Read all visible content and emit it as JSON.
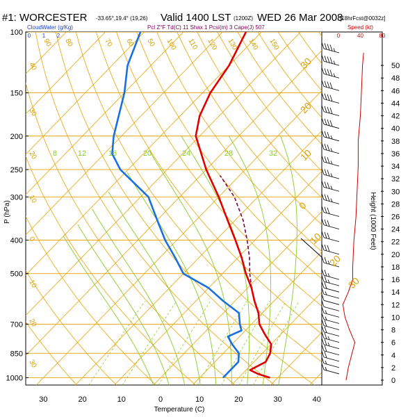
{
  "header": {
    "title_main": "#1: WORCESTER",
    "coords": "-33.65°,19.4° (19,26)",
    "valid": "Valid 1400 LST",
    "valid_utc": "(1200Z)",
    "date": "WED 26 Mar 2008",
    "forecast": "[18hrFcst@0032z]",
    "legend_cloudwater": "CloudWater (g/Kg)",
    "legend_params": "Pcl  Z°F Td(C)  11 Shax  1 Pcsi(m)  3 Cape(J)  507",
    "speed_label": "Speed (kt)"
  },
  "colors": {
    "temperature": "#e00000",
    "dewpoint": "#1a6fe0",
    "parcel": "#7a0050",
    "isobar": "#e8a400",
    "isotherm": "#e8a400",
    "mixing_ratio": "#88cc22",
    "speed_line": "#cc0000",
    "barb": "#000000"
  },
  "chart_data": {
    "type": "skew-t",
    "xlabel": "Temperature (C)",
    "ylabel": "P (hPa)",
    "right_ylabel": "Height (1000 Feet)",
    "pressure_ticks": [
      100,
      150,
      200,
      250,
      300,
      400,
      500,
      700,
      850,
      1000
    ],
    "temperature_ticks": [
      30,
      20,
      10,
      0,
      10,
      20,
      30,
      40
    ],
    "height_ticks": [
      0,
      2,
      4,
      6,
      8,
      10,
      12,
      14,
      16,
      18,
      20,
      22,
      24,
      26,
      28,
      30,
      32,
      34,
      36,
      38,
      40,
      42,
      44,
      46,
      48,
      50
    ],
    "speed_ticks": [
      0,
      40,
      80
    ],
    "cloudwater_ticks": [
      0,
      1,
      2
    ],
    "isotherm_labels": [
      -90,
      -80,
      -70,
      -60,
      -50,
      -40,
      -30,
      -20,
      -10,
      0,
      10,
      20,
      30
    ],
    "top_isotherm_labels": [
      90,
      80,
      70,
      60,
      50,
      100,
      110,
      120,
      130,
      140,
      150,
      160
    ],
    "left_edge_labels": [
      40,
      50,
      60,
      70,
      80,
      90
    ],
    "mixing_ratio_labels": [
      8,
      12,
      16,
      20,
      24,
      28,
      32
    ],
    "right_isotherm_labels": [
      30,
      20,
      10,
      0,
      10,
      20,
      30
    ],
    "temperature_profile": [
      {
        "p": 1000,
        "t": 28
      },
      {
        "p": 975,
        "t": 24
      },
      {
        "p": 950,
        "t": 21
      },
      {
        "p": 900,
        "t": 23
      },
      {
        "p": 850,
        "t": 22
      },
      {
        "p": 800,
        "t": 20
      },
      {
        "p": 750,
        "t": 16
      },
      {
        "p": 700,
        "t": 12
      },
      {
        "p": 650,
        "t": 9
      },
      {
        "p": 600,
        "t": 5
      },
      {
        "p": 550,
        "t": 1
      },
      {
        "p": 500,
        "t": -4
      },
      {
        "p": 450,
        "t": -9
      },
      {
        "p": 400,
        "t": -15
      },
      {
        "p": 350,
        "t": -22
      },
      {
        "p": 300,
        "t": -30
      },
      {
        "p": 250,
        "t": -40
      },
      {
        "p": 200,
        "t": -51
      },
      {
        "p": 175,
        "t": -55
      },
      {
        "p": 150,
        "t": -58
      },
      {
        "p": 125,
        "t": -60
      },
      {
        "p": 100,
        "t": -64
      }
    ],
    "dewpoint_profile": [
      {
        "p": 1000,
        "t": 16
      },
      {
        "p": 950,
        "t": 16
      },
      {
        "p": 900,
        "t": 16
      },
      {
        "p": 850,
        "t": 14
      },
      {
        "p": 800,
        "t": 10
      },
      {
        "p": 760,
        "t": 7
      },
      {
        "p": 730,
        "t": 9
      },
      {
        "p": 700,
        "t": 7
      },
      {
        "p": 650,
        "t": 4
      },
      {
        "p": 600,
        "t": -3
      },
      {
        "p": 550,
        "t": -10
      },
      {
        "p": 500,
        "t": -20
      },
      {
        "p": 450,
        "t": -26
      },
      {
        "p": 400,
        "t": -33
      },
      {
        "p": 350,
        "t": -40
      },
      {
        "p": 300,
        "t": -48
      },
      {
        "p": 250,
        "t": -62
      },
      {
        "p": 225,
        "t": -68
      },
      {
        "p": 200,
        "t": -72
      },
      {
        "p": 150,
        "t": -80
      },
      {
        "p": 125,
        "t": -86
      },
      {
        "p": 100,
        "t": -91
      }
    ],
    "parcel_profile": [
      {
        "p": 550,
        "t": 1
      },
      {
        "p": 500,
        "t": -3
      },
      {
        "p": 450,
        "t": -7
      },
      {
        "p": 400,
        "t": -12
      },
      {
        "p": 350,
        "t": -18
      },
      {
        "p": 300,
        "t": -26
      },
      {
        "p": 260,
        "t": -35
      }
    ],
    "wind_speed_profile": [
      {
        "h": 0,
        "s": 14
      },
      {
        "h": 2,
        "s": 18
      },
      {
        "h": 4,
        "s": 24
      },
      {
        "h": 6,
        "s": 30
      },
      {
        "h": 8,
        "s": 20
      },
      {
        "h": 10,
        "s": 12
      },
      {
        "h": 12,
        "s": 8
      },
      {
        "h": 14,
        "s": 18
      },
      {
        "h": 16,
        "s": 26
      },
      {
        "h": 18,
        "s": 26
      },
      {
        "h": 22,
        "s": 28
      },
      {
        "h": 26,
        "s": 32
      },
      {
        "h": 30,
        "s": 34
      },
      {
        "h": 34,
        "s": 36
      },
      {
        "h": 38,
        "s": 36
      },
      {
        "h": 42,
        "s": 40
      },
      {
        "h": 46,
        "s": 42
      },
      {
        "h": 50,
        "s": 44
      },
      {
        "h": 52,
        "s": 46
      }
    ],
    "wind_barbs": [
      {
        "h": 1,
        "s": 15
      },
      {
        "h": 2,
        "s": 15
      },
      {
        "h": 3,
        "s": 20
      },
      {
        "h": 4,
        "s": 20
      },
      {
        "h": 5,
        "s": 25
      },
      {
        "h": 6,
        "s": 25
      },
      {
        "h": 7,
        "s": 20
      },
      {
        "h": 8,
        "s": 20
      },
      {
        "h": 9,
        "s": 15
      },
      {
        "h": 10,
        "s": 15
      },
      {
        "h": 11,
        "s": 10
      },
      {
        "h": 12,
        "s": 10
      },
      {
        "h": 13,
        "s": 15
      },
      {
        "h": 14,
        "s": 20
      },
      {
        "h": 15,
        "s": 25
      },
      {
        "h": 16,
        "s": 25
      },
      {
        "h": 18,
        "s": 25
      },
      {
        "h": 20,
        "s": 30
      },
      {
        "h": 22,
        "s": 30
      },
      {
        "h": 24,
        "s": 30
      },
      {
        "h": 26,
        "s": 30
      },
      {
        "h": 28,
        "s": 35
      },
      {
        "h": 30,
        "s": 35
      },
      {
        "h": 32,
        "s": 35
      },
      {
        "h": 34,
        "s": 35
      },
      {
        "h": 36,
        "s": 35
      },
      {
        "h": 38,
        "s": 35
      },
      {
        "h": 40,
        "s": 40
      },
      {
        "h": 42,
        "s": 40
      },
      {
        "h": 44,
        "s": 40
      },
      {
        "h": 46,
        "s": 40
      },
      {
        "h": 48,
        "s": 45
      },
      {
        "h": 50,
        "s": 45
      },
      {
        "h": 52,
        "s": 45
      }
    ],
    "grid": true
  }
}
